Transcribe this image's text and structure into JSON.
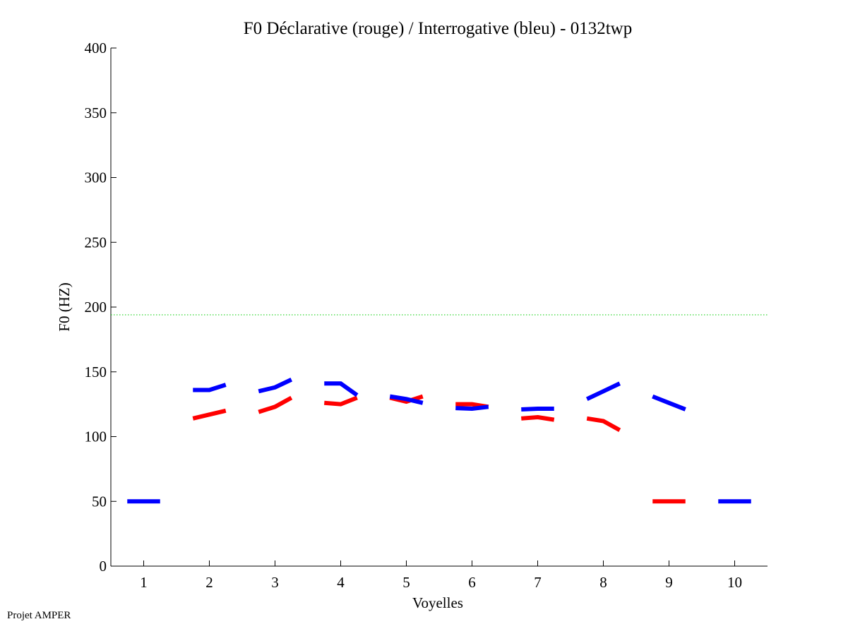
{
  "chart_data": {
    "type": "line",
    "title": "F0 Déclarative (rouge) / Interrogative (bleu) - 0132twp",
    "xlabel": "Voyelles",
    "ylabel": "F0 (HZ)",
    "xlim": [
      0.5,
      10.5
    ],
    "ylim": [
      0,
      400
    ],
    "xticks": [
      1,
      2,
      3,
      4,
      5,
      6,
      7,
      8,
      9,
      10
    ],
    "yticks": [
      0,
      50,
      100,
      150,
      200,
      250,
      300,
      350,
      400
    ],
    "grid": false,
    "reference_line": {
      "y": 194,
      "color": "#00cc00",
      "style": "dotted"
    },
    "series": [
      {
        "color": "#ff0000",
        "segments": [
          {
            "vowel": 2,
            "values": [
              114,
              117,
              120
            ]
          },
          {
            "vowel": 3,
            "values": [
              119,
              123,
              130
            ]
          },
          {
            "vowel": 4,
            "values": [
              126,
              125,
              130
            ]
          },
          {
            "vowel": 5,
            "values": [
              130,
              127,
              131
            ]
          },
          {
            "vowel": 6,
            "values": [
              125,
              125,
              123
            ]
          },
          {
            "vowel": 7,
            "values": [
              114,
              115,
              113
            ]
          },
          {
            "vowel": 8,
            "values": [
              114,
              112,
              105
            ]
          },
          {
            "vowel": 9,
            "values": [
              50,
              50,
              50
            ]
          }
        ]
      },
      {
        "color": "#0000ff",
        "segments": [
          {
            "vowel": 1,
            "values": [
              50,
              50,
              50
            ]
          },
          {
            "vowel": 2,
            "values": [
              136,
              136,
              140
            ]
          },
          {
            "vowel": 3,
            "values": [
              135,
              138,
              144
            ]
          },
          {
            "vowel": 4,
            "values": [
              141,
              141,
              132
            ]
          },
          {
            "vowel": 5,
            "values": [
              131,
              129,
              126
            ]
          },
          {
            "vowel": 6,
            "values": [
              122,
              121.5,
              123
            ]
          },
          {
            "vowel": 7,
            "values": [
              121,
              121.5,
              121.5
            ]
          },
          {
            "vowel": 8,
            "values": [
              129,
              135,
              141
            ]
          },
          {
            "vowel": 9,
            "values": [
              131,
              126,
              121
            ]
          },
          {
            "vowel": 10,
            "values": [
              50,
              50,
              50
            ]
          }
        ]
      }
    ]
  },
  "footer": "Projet AMPER"
}
